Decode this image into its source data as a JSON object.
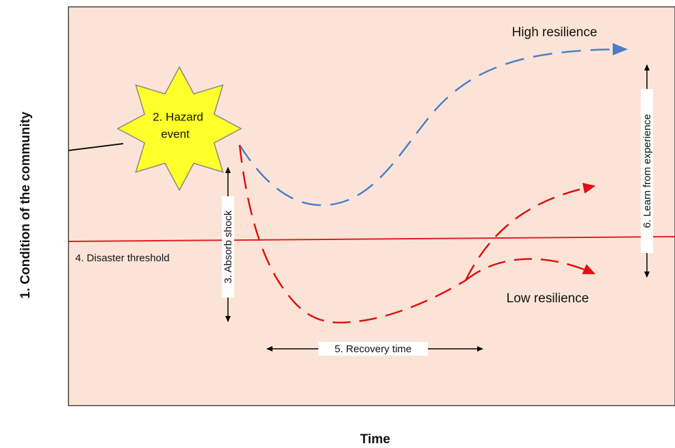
{
  "y_axis_label": "1. Condition of the community",
  "x_axis_label": "Time",
  "hazard_event": [
    "2. Hazard",
    "event"
  ],
  "absorb_shock": "3. Absorb shock",
  "disaster_threshold": "4. Disaster threshold",
  "recovery_time": "5. Recovery time",
  "learn_from_experience": "6. Learn from experience",
  "high_resilience": "High resilience",
  "low_resilience": "Low resilience"
}
